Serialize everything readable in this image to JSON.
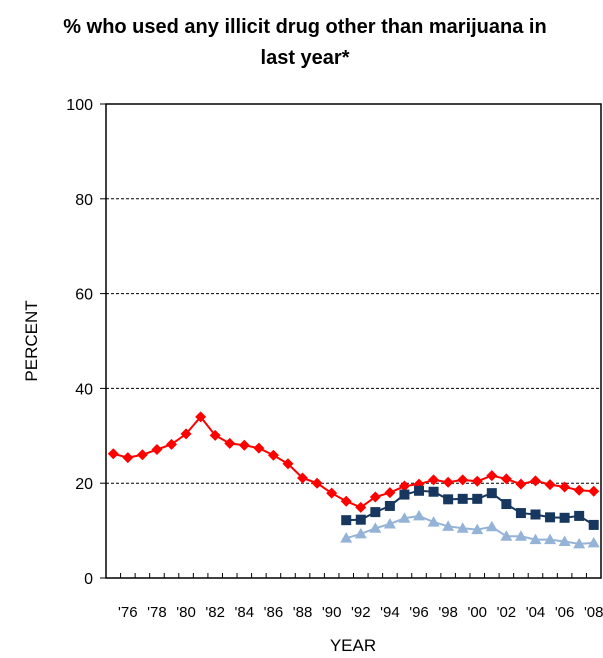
{
  "chart_data": {
    "type": "line",
    "title": "% who used any illicit drug other than marijuana in last year*",
    "xlabel": "YEAR",
    "ylabel": "PERCENT",
    "ylim": [
      0,
      100
    ],
    "xlim": [
      1974.5,
      2008.5
    ],
    "yticks": [
      0,
      20,
      40,
      60,
      80,
      100
    ],
    "xtick_labels": [
      {
        "year": 1976,
        "label": "'76"
      },
      {
        "year": 1978,
        "label": "'78"
      },
      {
        "year": 1980,
        "label": "'80"
      },
      {
        "year": 1982,
        "label": "'82"
      },
      {
        "year": 1984,
        "label": "'84"
      },
      {
        "year": 1986,
        "label": "'86"
      },
      {
        "year": 1988,
        "label": "'88"
      },
      {
        "year": 1990,
        "label": "'90"
      },
      {
        "year": 1992,
        "label": "'92"
      },
      {
        "year": 1994,
        "label": "'94"
      },
      {
        "year": 1996,
        "label": "'96"
      },
      {
        "year": 1998,
        "label": "'98"
      },
      {
        "year": 2000,
        "label": "'00"
      },
      {
        "year": 2002,
        "label": "'02"
      },
      {
        "year": 2004,
        "label": "'04"
      },
      {
        "year": 2006,
        "label": "'06"
      },
      {
        "year": 2008,
        "label": "'08"
      }
    ],
    "grid": "horizontal-dashed",
    "legend": "none",
    "series": [
      {
        "marker": "diamond",
        "color": "#ff0000",
        "x": [
          1975,
          1976,
          1977,
          1978,
          1979,
          1980,
          1981,
          1982,
          1983,
          1984,
          1985,
          1986,
          1987,
          1988,
          1989,
          1990,
          1991,
          1992,
          1993,
          1994,
          1995,
          1996,
          1997,
          1998,
          1999,
          2000,
          2001,
          2002,
          2003,
          2004,
          2005,
          2006,
          2007,
          2008
        ],
        "values": [
          26.2,
          25.4,
          26.0,
          27.1,
          28.2,
          30.4,
          34.0,
          30.1,
          28.4,
          28.0,
          27.4,
          25.9,
          24.1,
          21.1,
          20.0,
          17.9,
          16.2,
          14.9,
          17.1,
          18.0,
          19.4,
          19.8,
          20.7,
          20.2,
          20.7,
          20.4,
          21.6,
          20.9,
          19.8,
          20.5,
          19.7,
          19.2,
          18.5,
          18.3
        ]
      },
      {
        "marker": "square",
        "color": "#17375e",
        "x": [
          1991,
          1992,
          1993,
          1994,
          1995,
          1996,
          1997,
          1998,
          1999,
          2000,
          2001,
          2002,
          2003,
          2004,
          2005,
          2006,
          2007,
          2008
        ],
        "values": [
          12.2,
          12.3,
          13.9,
          15.2,
          17.6,
          18.4,
          18.2,
          16.6,
          16.7,
          16.7,
          17.9,
          15.6,
          13.7,
          13.4,
          12.8,
          12.7,
          13.1,
          11.2
        ]
      },
      {
        "marker": "triangle",
        "color": "#95b3d7",
        "x": [
          1991,
          1992,
          1993,
          1994,
          1995,
          1996,
          1997,
          1998,
          1999,
          2000,
          2001,
          2002,
          2003,
          2004,
          2005,
          2006,
          2007,
          2008
        ],
        "values": [
          8.4,
          9.3,
          10.5,
          11.4,
          12.6,
          13.1,
          11.8,
          10.9,
          10.5,
          10.2,
          10.8,
          8.8,
          8.8,
          8.1,
          8.1,
          7.7,
          7.2,
          7.4
        ]
      }
    ]
  }
}
